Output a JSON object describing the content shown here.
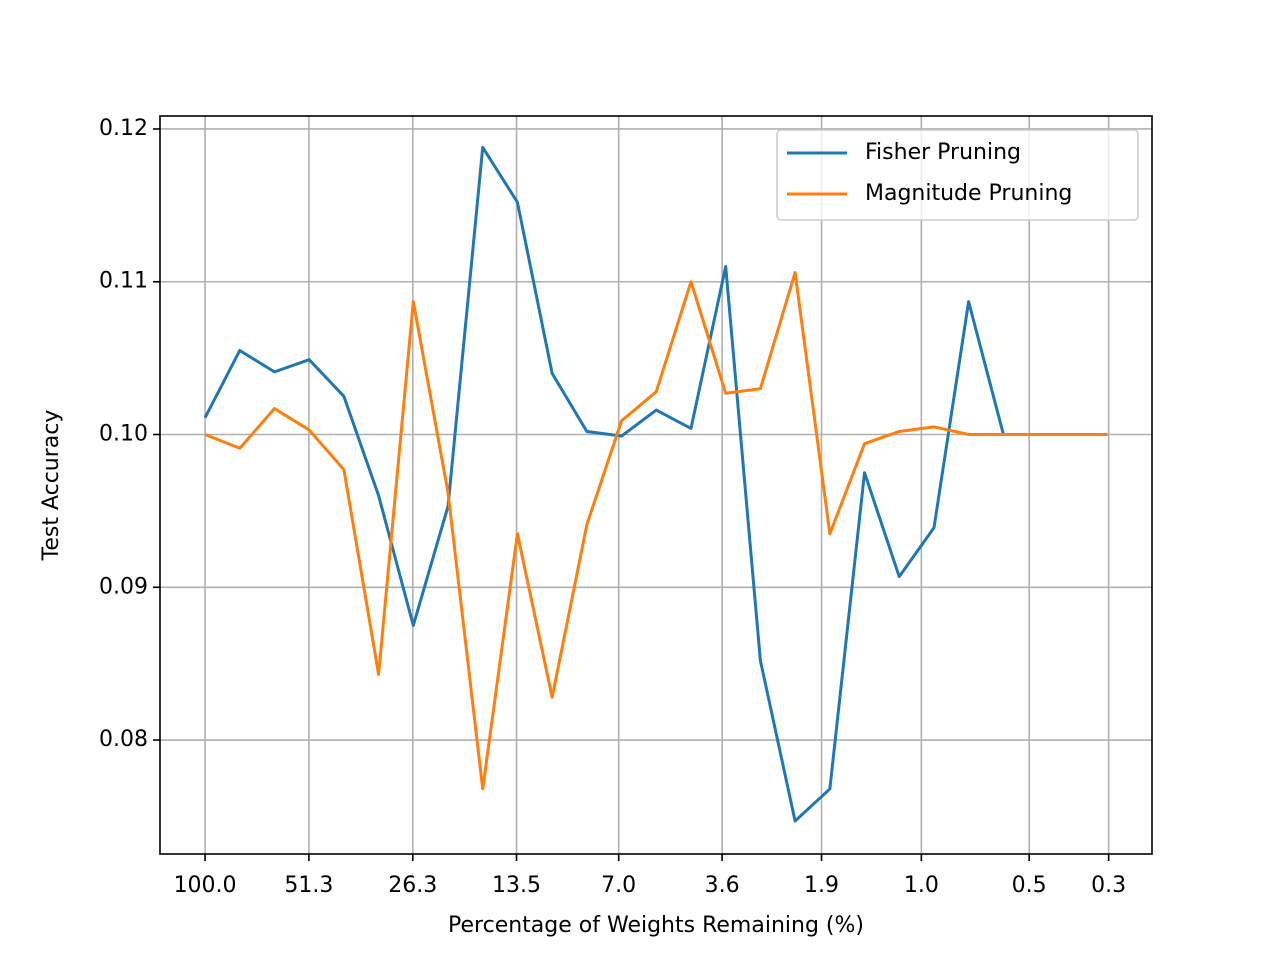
{
  "chart_data": {
    "type": "line",
    "xlabel": "Percentage of Weights Remaining (%)",
    "ylabel": "Test Accuracy",
    "x": [
      100,
      80,
      64,
      51.2,
      40.96,
      32.768,
      26.214,
      20.972,
      16.777,
      13.422,
      10.737,
      8.59,
      6.872,
      5.498,
      4.398,
      3.518,
      2.815,
      2.252,
      1.801,
      1.441,
      1.153,
      0.922,
      0.738,
      0.59,
      0.472,
      0.378,
      0.302
    ],
    "series": [
      {
        "name": "Fisher Pruning",
        "color": "#1f77b4",
        "values": [
          0.1011,
          0.1055,
          0.1041,
          0.1049,
          0.1025,
          0.096,
          0.0875,
          0.0953,
          0.1188,
          0.1152,
          0.104,
          0.1002,
          0.0999,
          0.1016,
          0.1004,
          0.111,
          0.0852,
          0.0747,
          0.0768,
          0.0975,
          0.0907,
          0.0939,
          0.1087,
          0.1,
          0.1,
          0.1,
          0.1
        ]
      },
      {
        "name": "Magnitude Pruning",
        "color": "#ff7f0e",
        "values": [
          0.1,
          0.0991,
          0.1017,
          0.1003,
          0.0977,
          0.0843,
          0.1087,
          0.0962,
          0.0768,
          0.0935,
          0.0828,
          0.0941,
          0.1009,
          0.1028,
          0.11,
          0.1027,
          0.103,
          0.1106,
          0.0935,
          0.0994,
          0.1002,
          0.1005,
          0.1,
          0.1,
          0.1,
          0.1,
          0.1
        ]
      }
    ],
    "xscale": "log",
    "xlim": [
      133.6,
      0.227
    ],
    "xticks": [
      {
        "value": 100,
        "label": "100.0"
      },
      51.3,
      26.3,
      13.5,
      {
        "value": 7,
        "label": "7.0"
      },
      3.6,
      1.9,
      {
        "value": 1,
        "label": "1.0"
      },
      0.5,
      0.3
    ],
    "ylim": [
      0.07254,
      0.12085
    ],
    "yticks": [
      0.08,
      0.09,
      {
        "value": 0.1,
        "label": "0.10"
      },
      0.11,
      0.12
    ],
    "grid": true,
    "legend": "upper right"
  }
}
